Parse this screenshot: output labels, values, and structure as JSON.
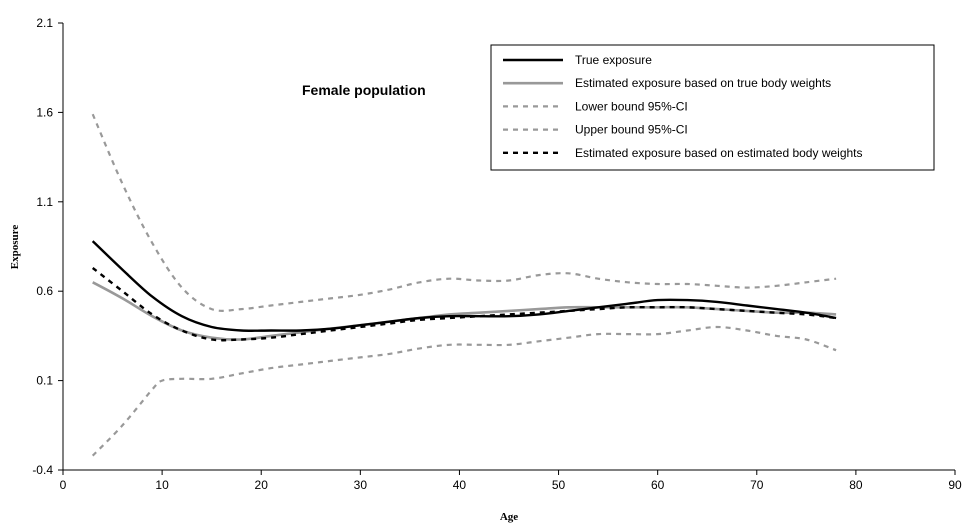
{
  "chart_data": {
    "type": "line",
    "title": "",
    "annotation": "Female population",
    "xlabel": "Age",
    "ylabel": "Exposure",
    "xlim": [
      0,
      90
    ],
    "ylim": [
      -0.4,
      2.1
    ],
    "x_ticks": [
      "0",
      "10",
      "20",
      "30",
      "40",
      "50",
      "60",
      "70",
      "80",
      "90"
    ],
    "y_ticks": [
      "-0.4",
      "0.1",
      "0.6",
      "1.1",
      "1.6",
      "2.1"
    ],
    "grid": false,
    "legend_position": "top-right",
    "series": [
      {
        "name": "True exposure",
        "color": "#000000",
        "style": "solid",
        "x": [
          3,
          6,
          9,
          12,
          15,
          18,
          21,
          24,
          27,
          30,
          33,
          36,
          39,
          42,
          45,
          48,
          51,
          54,
          57,
          60,
          63,
          66,
          69,
          72,
          75,
          78
        ],
        "y": [
          0.88,
          0.72,
          0.57,
          0.46,
          0.4,
          0.38,
          0.38,
          0.38,
          0.39,
          0.41,
          0.43,
          0.45,
          0.46,
          0.46,
          0.46,
          0.47,
          0.49,
          0.51,
          0.53,
          0.55,
          0.55,
          0.54,
          0.52,
          0.5,
          0.48,
          0.45
        ]
      },
      {
        "name": "Estimated exposure based on true body weights",
        "color": "#999999",
        "style": "solid",
        "x": [
          3,
          6,
          9,
          12,
          15,
          18,
          21,
          24,
          27,
          30,
          33,
          36,
          39,
          42,
          45,
          48,
          51,
          54,
          57,
          60,
          63,
          66,
          69,
          72,
          75,
          78
        ],
        "y": [
          0.65,
          0.56,
          0.46,
          0.38,
          0.34,
          0.33,
          0.35,
          0.37,
          0.39,
          0.41,
          0.43,
          0.45,
          0.47,
          0.48,
          0.49,
          0.5,
          0.51,
          0.51,
          0.51,
          0.51,
          0.51,
          0.5,
          0.49,
          0.48,
          0.48,
          0.47
        ]
      },
      {
        "name": "Lower bound 95%-CI",
        "color": "#999999",
        "style": "dashed",
        "x": [
          3,
          6,
          9,
          10,
          12,
          15,
          18,
          21,
          24,
          27,
          30,
          33,
          36,
          39,
          42,
          45,
          48,
          51,
          54,
          57,
          60,
          63,
          66,
          69,
          72,
          75,
          78
        ],
        "y": [
          -0.32,
          -0.15,
          0.05,
          0.1,
          0.11,
          0.11,
          0.14,
          0.17,
          0.19,
          0.21,
          0.23,
          0.25,
          0.28,
          0.3,
          0.3,
          0.3,
          0.32,
          0.34,
          0.36,
          0.36,
          0.36,
          0.38,
          0.4,
          0.38,
          0.35,
          0.33,
          0.27
        ]
      },
      {
        "name": "Upper bound 95%-CI",
        "color": "#999999",
        "style": "dashed",
        "x": [
          3,
          6,
          9,
          12,
          15,
          18,
          21,
          24,
          27,
          30,
          33,
          36,
          39,
          42,
          45,
          48,
          51,
          54,
          57,
          60,
          63,
          66,
          69,
          72,
          75,
          78
        ],
        "y": [
          1.59,
          1.2,
          0.87,
          0.62,
          0.5,
          0.5,
          0.52,
          0.54,
          0.56,
          0.58,
          0.61,
          0.65,
          0.67,
          0.66,
          0.66,
          0.69,
          0.7,
          0.67,
          0.65,
          0.64,
          0.64,
          0.63,
          0.62,
          0.63,
          0.65,
          0.67
        ]
      },
      {
        "name": "Estimated exposure based on estimated body weights",
        "color": "#000000",
        "style": "dashed",
        "x": [
          3,
          6,
          9,
          12,
          15,
          18,
          21,
          24,
          27,
          30,
          33,
          36,
          39,
          42,
          45,
          48,
          51,
          54,
          57,
          60,
          63,
          66,
          69,
          72,
          75,
          78
        ],
        "y": [
          0.73,
          0.6,
          0.47,
          0.38,
          0.33,
          0.33,
          0.34,
          0.36,
          0.38,
          0.4,
          0.42,
          0.44,
          0.45,
          0.46,
          0.47,
          0.48,
          0.49,
          0.5,
          0.51,
          0.51,
          0.51,
          0.5,
          0.49,
          0.48,
          0.47,
          0.45
        ]
      }
    ]
  }
}
